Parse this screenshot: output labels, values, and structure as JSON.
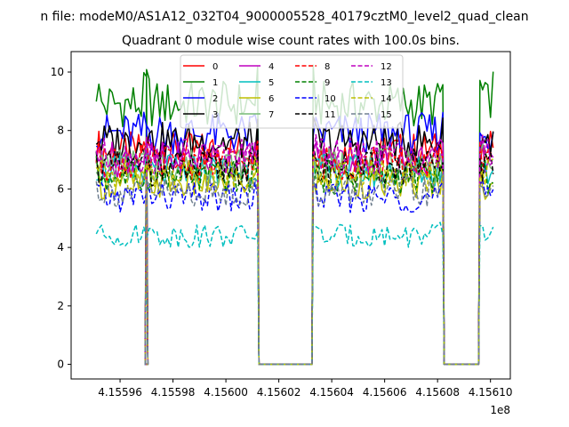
{
  "chart_data": {
    "type": "line",
    "suptitle": "n file: modeM0/AS1A12_032T04_9000005528_40179cztM0_level2_quad_clean",
    "title": "Quadrant 0 module wise count rates with 100.0s bins.",
    "xlabel": "",
    "ylabel": "",
    "x_offset_label": "1e8",
    "xlim": [
      4.1559415,
      4.1561075
    ],
    "ylim": [
      -0.5,
      10.7
    ],
    "xticks": [
      4.15596,
      4.15598,
      4.156,
      4.15602,
      4.15604,
      4.15606,
      4.15608,
      4.1561
    ],
    "xtick_labels": [
      "4.15596",
      "4.15598",
      "4.15600",
      "4.15602",
      "4.15604",
      "4.15606",
      "4.15608",
      "4.15610"
    ],
    "yticks": [
      0,
      2,
      4,
      6,
      8,
      10
    ],
    "ytick_labels": [
      "0",
      "2",
      "4",
      "6",
      "8",
      "10"
    ],
    "grid": false,
    "legend": {
      "placement": "top-center",
      "columns": 4
    },
    "segments": [
      {
        "start": 4.155951,
        "end": 4.15597
      },
      {
        "start": 4.15597,
        "end": 4.156012
      },
      {
        "start": 4.156033,
        "end": 4.156082
      },
      {
        "start": 4.156096,
        "end": 4.156101
      }
    ],
    "series": [
      {
        "name": "0",
        "color": "#ff0000",
        "dash": false,
        "level": 7.3
      },
      {
        "name": "1",
        "color": "#008000",
        "dash": false,
        "level": 8.9
      },
      {
        "name": "2",
        "color": "#0000ff",
        "dash": false,
        "level": 7.9
      },
      {
        "name": "3",
        "color": "#000000",
        "dash": false,
        "level": 7.6
      },
      {
        "name": "4",
        "color": "#bf00bf",
        "dash": false,
        "level": 7.0
      },
      {
        "name": "5",
        "color": "#00bfbf",
        "dash": false,
        "level": 6.6
      },
      {
        "name": "6",
        "color": "#bfbf00",
        "dash": false,
        "level": 6.2
      },
      {
        "name": "7",
        "color": "#77bb77",
        "dash": false,
        "level": 6.8
      },
      {
        "name": "8",
        "color": "#ff0000",
        "dash": true,
        "level": 6.9
      },
      {
        "name": "9",
        "color": "#008000",
        "dash": true,
        "level": 6.4
      },
      {
        "name": "10",
        "color": "#0000ff",
        "dash": true,
        "level": 5.7
      },
      {
        "name": "11",
        "color": "#000000",
        "dash": true,
        "level": 6.7
      },
      {
        "name": "12",
        "color": "#bf00bf",
        "dash": true,
        "level": 7.1
      },
      {
        "name": "13",
        "color": "#00bfbf",
        "dash": true,
        "level": 4.4
      },
      {
        "name": "14",
        "color": "#bfbf00",
        "dash": true,
        "level": 6.5
      },
      {
        "name": "15",
        "color": "#708090",
        "dash": true,
        "level": 5.9
      }
    ]
  }
}
